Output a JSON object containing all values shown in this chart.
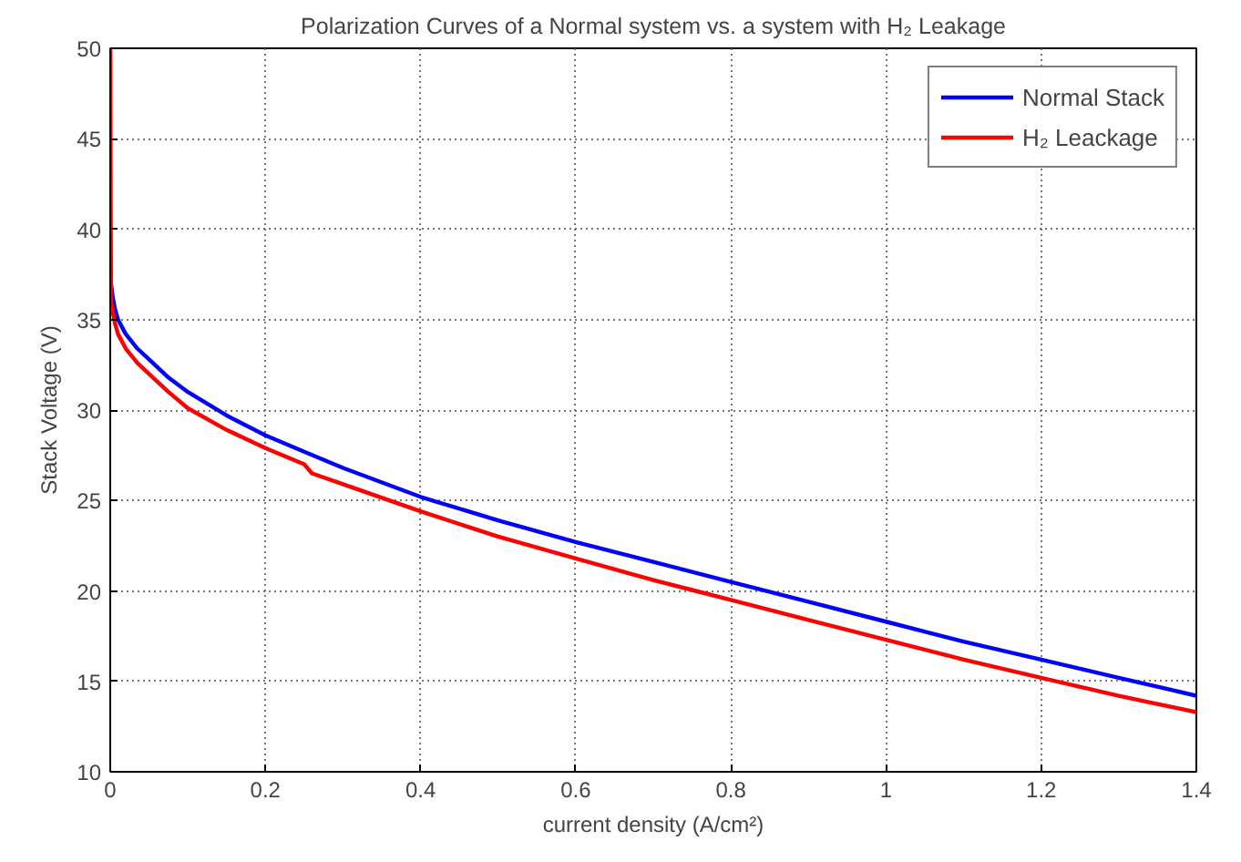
{
  "chart_data": {
    "type": "line",
    "title": "Polarization Curves of a Normal system vs. a system with H₂ Leakage",
    "xlabel": "current density (A/cm²)",
    "ylabel": "Stack Voltage (V)",
    "xlim": [
      0,
      1.4
    ],
    "ylim": [
      10,
      50
    ],
    "xticks": [
      0,
      0.2,
      0.4,
      0.6,
      0.8,
      1,
      1.2,
      1.4
    ],
    "yticks": [
      10,
      15,
      20,
      25,
      30,
      35,
      40,
      45,
      50
    ],
    "grid": true,
    "legend": "top right",
    "line_style": "solid",
    "series": [
      {
        "name": "Normal Stack",
        "color": "#0000ff",
        "x": [
          0.001,
          0.003,
          0.006,
          0.01,
          0.02,
          0.035,
          0.05,
          0.075,
          0.1,
          0.15,
          0.2,
          0.25,
          0.3,
          0.4,
          0.5,
          0.6,
          0.7,
          0.8,
          0.9,
          1.0,
          1.1,
          1.2,
          1.3,
          1.4
        ],
        "values": [
          37,
          36.3,
          35.6,
          35,
          34.2,
          33.4,
          32.8,
          31.8,
          31,
          29.7,
          28.6,
          27.7,
          26.8,
          25.2,
          23.9,
          22.7,
          21.6,
          20.5,
          19.4,
          18.3,
          17.2,
          16.2,
          15.2,
          14.2
        ]
      },
      {
        "name": "H₂ Leackage",
        "color": "#ff0000",
        "x": [
          0,
          0.001,
          0.003,
          0.006,
          0.01,
          0.02,
          0.035,
          0.05,
          0.075,
          0.1,
          0.15,
          0.2,
          0.25,
          0.26,
          0.3,
          0.4,
          0.5,
          0.6,
          0.7,
          0.8,
          0.9,
          1.0,
          1.1,
          1.2,
          1.3,
          1.4
        ],
        "values": [
          50,
          36,
          35.5,
          34.8,
          34.2,
          33.4,
          32.6,
          32,
          31,
          30.1,
          28.9,
          27.9,
          27,
          26.5,
          25.9,
          24.4,
          23,
          21.8,
          20.6,
          19.5,
          18.4,
          17.3,
          16.2,
          15.2,
          14.2,
          13.3
        ]
      }
    ]
  }
}
